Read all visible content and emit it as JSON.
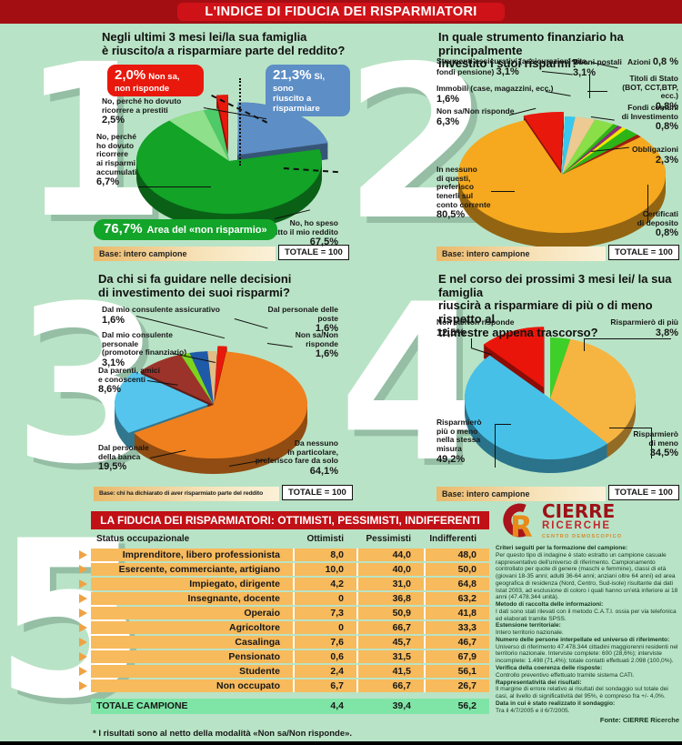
{
  "banner": {
    "title": "L'INDICE DI FIDUCIA DEI RISPARMIATORI"
  },
  "chart_data": [
    {
      "type": "pie",
      "number": "1",
      "title": "Negli ultimi 3 mesi lei/la sua famiglia\nè riuscito/a a risparmiare parte del reddito?",
      "start": -97,
      "slices": [
        {
          "label": "Non sa,\nnon risponde",
          "pct": "2,0%",
          "value": 2.0,
          "color": "#e8180c",
          "explode": 26
        },
        {
          "label": "Sì, sono\nriuscito a risparmiare",
          "pct": "21,3%",
          "value": 21.3,
          "color": "#5d8ec6",
          "explode": 15
        },
        {
          "label": "No, ho speso\ntutto il mio reddito",
          "pct": "67,5%",
          "value": 67.5,
          "color": "#12a327",
          "explode": 0
        },
        {
          "label": "No, perché\nho dovuto\nricorrere\nai risparmi\naccumulati",
          "pct": "6,7%",
          "value": 6.7,
          "color": "#8fe08a",
          "explode": 0
        },
        {
          "label": "No, perché ho dovuto\nricorrere a prestiti",
          "pct": "2,5%",
          "value": 2.5,
          "color": "#4ecb68",
          "explode": 0
        }
      ],
      "area": {
        "pct": "76,7%",
        "label": "Area del «non risparmio»"
      },
      "base": "Base: intero campione",
      "totale": "TOTALE = 100"
    },
    {
      "type": "pie",
      "number": "2",
      "title": "In quale strumento finanziario ha principalmente\ninvestito i suoi risparmi?",
      "start": -111,
      "slices": [
        {
          "label": "Non sa/Non risponde",
          "pct": "6,3%",
          "value": 6.3,
          "color": "#e8190c",
          "explode": 9
        },
        {
          "label": "Immobili (case, magazzini, ecc.)",
          "pct": "1,6%",
          "value": 1.6,
          "color": "#38c8ef",
          "explode": 0
        },
        {
          "label": "Strumenti assicurativi (assicurazioni vita,\nfondi pensione)",
          "pct": "3,1%",
          "value": 3.1,
          "color": "#ecca92",
          "explode": 0
        },
        {
          "label": "Buoni postali",
          "pct": "3,1%",
          "value": 3.1,
          "color": "#8adf48",
          "explode": 0
        },
        {
          "label": "Azioni",
          "pct": "0,8 %",
          "value": 0.8,
          "color": "#2eb512",
          "explode": 0
        },
        {
          "label": "Titoli di Stato\n(BOT, CCT,BTP, ecc.)",
          "pct": "0,8%",
          "value": 0.8,
          "color": "#8c2e7a",
          "explode": 0
        },
        {
          "label": "Fondi comuni\ndi Investimento",
          "pct": "0,8%",
          "value": 0.8,
          "color": "#f2e800",
          "explode": 0
        },
        {
          "label": "Obbligazioni",
          "pct": "2,3%",
          "value": 2.3,
          "color": "#2db517",
          "explode": 0
        },
        {
          "label": "Certificati\ndi deposito",
          "pct": "0,8%",
          "value": 0.8,
          "color": "#9e2012",
          "explode": 0
        },
        {
          "label": "In nessuno\ndi questi,\npreferisco\ntenerli sul\nconto corrente",
          "pct": "80,5%",
          "value": 80.5,
          "color": "#f6a91e",
          "explode": 0
        }
      ],
      "base": "Base: intero campione",
      "totale": "TOTALE = 100"
    },
    {
      "type": "pie",
      "number": "3",
      "title": "Da chi si fa guidare nelle decisioni\ndi investimento dei suoi risparmi?",
      "start": -88,
      "slices": [
        {
          "label": "Non sa/Non risponde",
          "pct": "1,6%",
          "value": 1.6,
          "color": "#e8190c",
          "explode": 10
        },
        {
          "label": "Da nessuno\nin particolare,\npreferisco fare da solo",
          "pct": "64,1%",
          "value": 64.1,
          "color": "#f0801e",
          "explode": 0
        },
        {
          "label": "Dal personale\ndella banca",
          "pct": "19,5%",
          "value": 19.5,
          "color": "#55c5ee",
          "explode": 6
        },
        {
          "label": "Da parenti, amici\ne conoscenti",
          "pct": "8,6%",
          "value": 8.6,
          "color": "#9c332a",
          "explode": 0
        },
        {
          "label": "Dal mio consulente assicurativo",
          "pct": "1,6%",
          "value": 1.6,
          "color": "#7cd41e",
          "explode": 0
        },
        {
          "label": "Dal mio consulente\npersonale\n(promotore finanziario)",
          "pct": "3,1%",
          "value": 3.1,
          "color": "#1f5aa8",
          "explode": 0
        },
        {
          "label": "Dal personale delle poste",
          "pct": "1,6%",
          "value": 1.6,
          "color": "#e2bd86",
          "explode": 0
        }
      ],
      "base": "Base: chi ha dichiarato di aver risparmiato parte del reddito",
      "totale": "TOTALE = 100"
    },
    {
      "type": "pie",
      "number": "4",
      "title": "E nel corso dei prossimi 3 mesi lei/ la sua famiglia\nriuscirà a risparmiare di più o di meno rispetto al\ntrimestre appena trascorso?",
      "start": -90,
      "slices": [
        {
          "label": "Risparmierò di più",
          "pct": "3,8%",
          "value": 3.8,
          "color": "#3ecf28",
          "explode": 0
        },
        {
          "label": "Risparmierò\ndi meno",
          "pct": "34,5%",
          "value": 34.5,
          "color": "#f6b441",
          "explode": 0
        },
        {
          "label": "Risparmierò\npiù o meno\nnella stessa\nmisura",
          "pct": "49,2%",
          "value": 49.2,
          "color": "#47c0e8",
          "explode": 0
        },
        {
          "label": "Non sa/Non risponde",
          "pct": "12,5%",
          "value": 12.5,
          "color": "#ea150a",
          "explode": 18
        }
      ],
      "base": "Base: intero campione",
      "totale": "TOTALE = 100"
    },
    {
      "type": "table",
      "number": "5",
      "title": "LA FIDUCIA DEI RISPARMIATORI: OTTIMISTI, PESSIMISTI, INDIFFERENTI",
      "columns": [
        "Status occupazionale",
        "Ottimisti",
        "Pessimisti",
        "Indifferenti"
      ],
      "rows": [
        [
          "Imprenditore, libero professionista",
          "8,0",
          "44,0",
          "48,0"
        ],
        [
          "Esercente, commerciante, artigiano",
          "10,0",
          "40,0",
          "50,0"
        ],
        [
          "Impiegato, dirigente",
          "4,2",
          "31,0",
          "64,8"
        ],
        [
          "Insegnante, docente",
          "0",
          "36,8",
          "63,2"
        ],
        [
          "Operaio",
          "7,3",
          "50,9",
          "41,8"
        ],
        [
          "Agricoltore",
          "0",
          "66,7",
          "33,3"
        ],
        [
          "Casalinga",
          "7,6",
          "45,7",
          "46,7"
        ],
        [
          "Pensionato",
          "0,6",
          "31,5",
          "67,9"
        ],
        [
          "Studente",
          "2,4",
          "41,5",
          "56,1"
        ],
        [
          "Non occupato",
          "6,7",
          "66,7",
          "26,7"
        ]
      ],
      "total_row": [
        "TOTALE CAMPIONE",
        "4,4",
        "39,4",
        "56,2"
      ]
    }
  ],
  "footnote": "* I risultati sono al netto della modalità «Non sa/Non risponde».",
  "logo": {
    "name": "CIERRE",
    "sub": "RICERCHE",
    "tagline": "CENTRO DEMOSCOPICO"
  },
  "notes": [
    {
      "h": "Criteri seguiti per la formazione del campione:",
      "t": "Per questo tipo di indagine è stato estratto un campione casuale rappresentativo dell'universo di riferimento. Campionamento controllato per quote di genere (maschi e femmine), classi di età (giovani 18-35 anni; adulti 36-64 anni; anziani oltre 64 anni) ed area geografica di residenza (Nord, Centro, Sud-isole) risultante dai dati Istat 2003, ad esclusione di coloro i quali hanno un'età inferiore ai 18 anni (47.478.344 unità)."
    },
    {
      "h": "Metodo di raccolta delle informazioni:",
      "t": "I dati sono stati rilevati con il metodo C.A.T.I. ossia per via telefonica ed elaborati tramite SPSS."
    },
    {
      "h": "Estensione territoriale:",
      "t": "Intero territorio nazionale."
    },
    {
      "h": "Numero delle persone interpellate ed universo di riferimento:",
      "t": "Universo di riferimento 47.478.344 cittadini maggiorenni residenti nel territorio nazionale. Interviste complete: 600 (28,6%); interviste incomplete: 1.498 (71,4%); totale contatti effettuati 2.098 (100,0%)."
    },
    {
      "h": "Verifica della coerenza delle risposte:",
      "t": "Controllo preventivo effettuato tramite sistema CATI."
    },
    {
      "h": "Rappresentatività dei risultati:",
      "t": "Il margine di errore relativo ai risultati del sondaggio sul totale dei casi, al livello di significatività del 95%, è compreso fra +/- 4,0%."
    },
    {
      "h": "Data in cui è stato realizzato il sondaggio:",
      "t": "Tra il 4/7/2005 e il 6/7/2005."
    }
  ],
  "fonte": "Fonte: CIERRE Ricerche"
}
